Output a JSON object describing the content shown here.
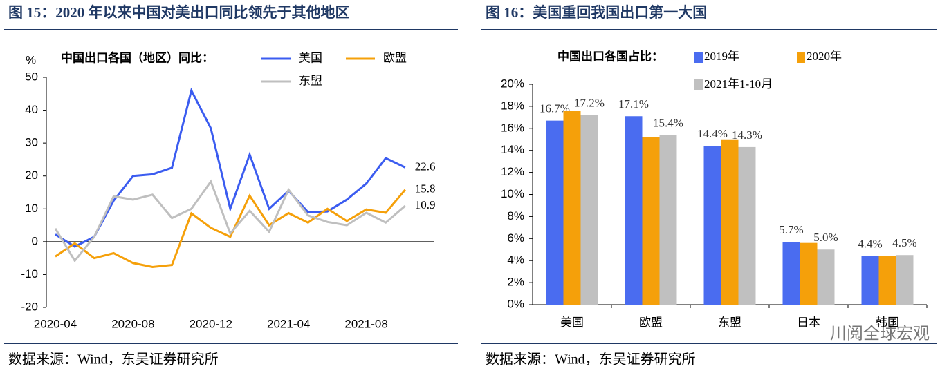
{
  "chart_data": [
    {
      "type": "line",
      "title": "图 15：2020 年以来中国对美出口同比领先于其他地区",
      "source": "数据来源：Wind，东吴证券研究所",
      "ylabel": "%",
      "legend_title": "中国出口各国（地区）同比：",
      "categories": [
        "2020-04",
        null,
        null,
        null,
        "2020-08",
        null,
        null,
        null,
        "2020-12",
        null,
        null,
        null,
        "2021-04",
        null,
        null,
        null,
        "2021-08",
        null,
        null
      ],
      "series": [
        {
          "name": "美国",
          "color": "#3b5cf0",
          "values": [
            2.2,
            -1.5,
            1.5,
            12.5,
            20,
            20.5,
            22.5,
            46,
            34.5,
            10,
            26.5,
            10,
            15.5,
            9,
            9.2,
            12.8,
            17.7,
            25.4,
            22.6
          ]
        },
        {
          "name": "欧盟",
          "color": "#f5a00a",
          "values": [
            -4.5,
            -0.5,
            -5,
            -3.5,
            -6.5,
            -7.7,
            -7.1,
            8.6,
            4.2,
            1.5,
            14,
            5,
            8.7,
            5.8,
            10,
            6.3,
            9.8,
            8.8,
            15.8
          ]
        },
        {
          "name": "东盟",
          "color": "#bfbfbf",
          "values": [
            4,
            -5.8,
            1.5,
            13.8,
            12.8,
            14.3,
            7.2,
            10,
            18.3,
            2.5,
            9.4,
            3,
            15.8,
            8,
            6,
            5,
            8.8,
            5.8,
            10.9
          ]
        }
      ],
      "ylim": [
        -20,
        50
      ],
      "yticks": [
        -20,
        -10,
        0,
        10,
        20,
        30,
        40,
        50
      ]
    },
    {
      "type": "bar",
      "title": "图 16：美国重回我国出口第一大国",
      "source": "数据来源：Wind，东吴证券研究所",
      "legend_title": "中国出口各国占比：",
      "watermark": "川阅全球宏观",
      "categories": [
        "美国",
        "欧盟",
        "东盟",
        "日本",
        "韩国"
      ],
      "series": [
        {
          "name": "2019年",
          "color": "#4a6cf0",
          "values": [
            16.7,
            17.1,
            14.4,
            5.7,
            4.4
          ],
          "value_labels": [
            "16.7%",
            "17.1%",
            "14.4%",
            "5.7%",
            "4.4%"
          ]
        },
        {
          "name": "2020年",
          "color": "#f5a00a",
          "values": [
            17.6,
            15.2,
            15.0,
            5.6,
            4.4
          ]
        },
        {
          "name": "2021年1-10月",
          "color": "#c0c0c0",
          "values": [
            17.2,
            15.4,
            14.3,
            5.0,
            4.5
          ],
          "value_labels": [
            "17.2%",
            "15.4%",
            "14.3%",
            "5.0%",
            "4.5%"
          ]
        }
      ],
      "ylim": [
        0,
        20
      ],
      "yticks": [
        {
          "value": 0,
          "label": "0%"
        },
        {
          "value": 2,
          "label": "2%"
        },
        {
          "value": 4,
          "label": "4%"
        },
        {
          "value": 6,
          "label": "6%"
        },
        {
          "value": 8,
          "label": "8%"
        },
        {
          "value": 10,
          "label": "10%"
        },
        {
          "value": 12,
          "label": "12%"
        },
        {
          "value": 14,
          "label": "14%"
        },
        {
          "value": 16,
          "label": "16%"
        },
        {
          "value": 18,
          "label": "18%"
        },
        {
          "value": 20,
          "label": "20%"
        }
      ]
    }
  ]
}
